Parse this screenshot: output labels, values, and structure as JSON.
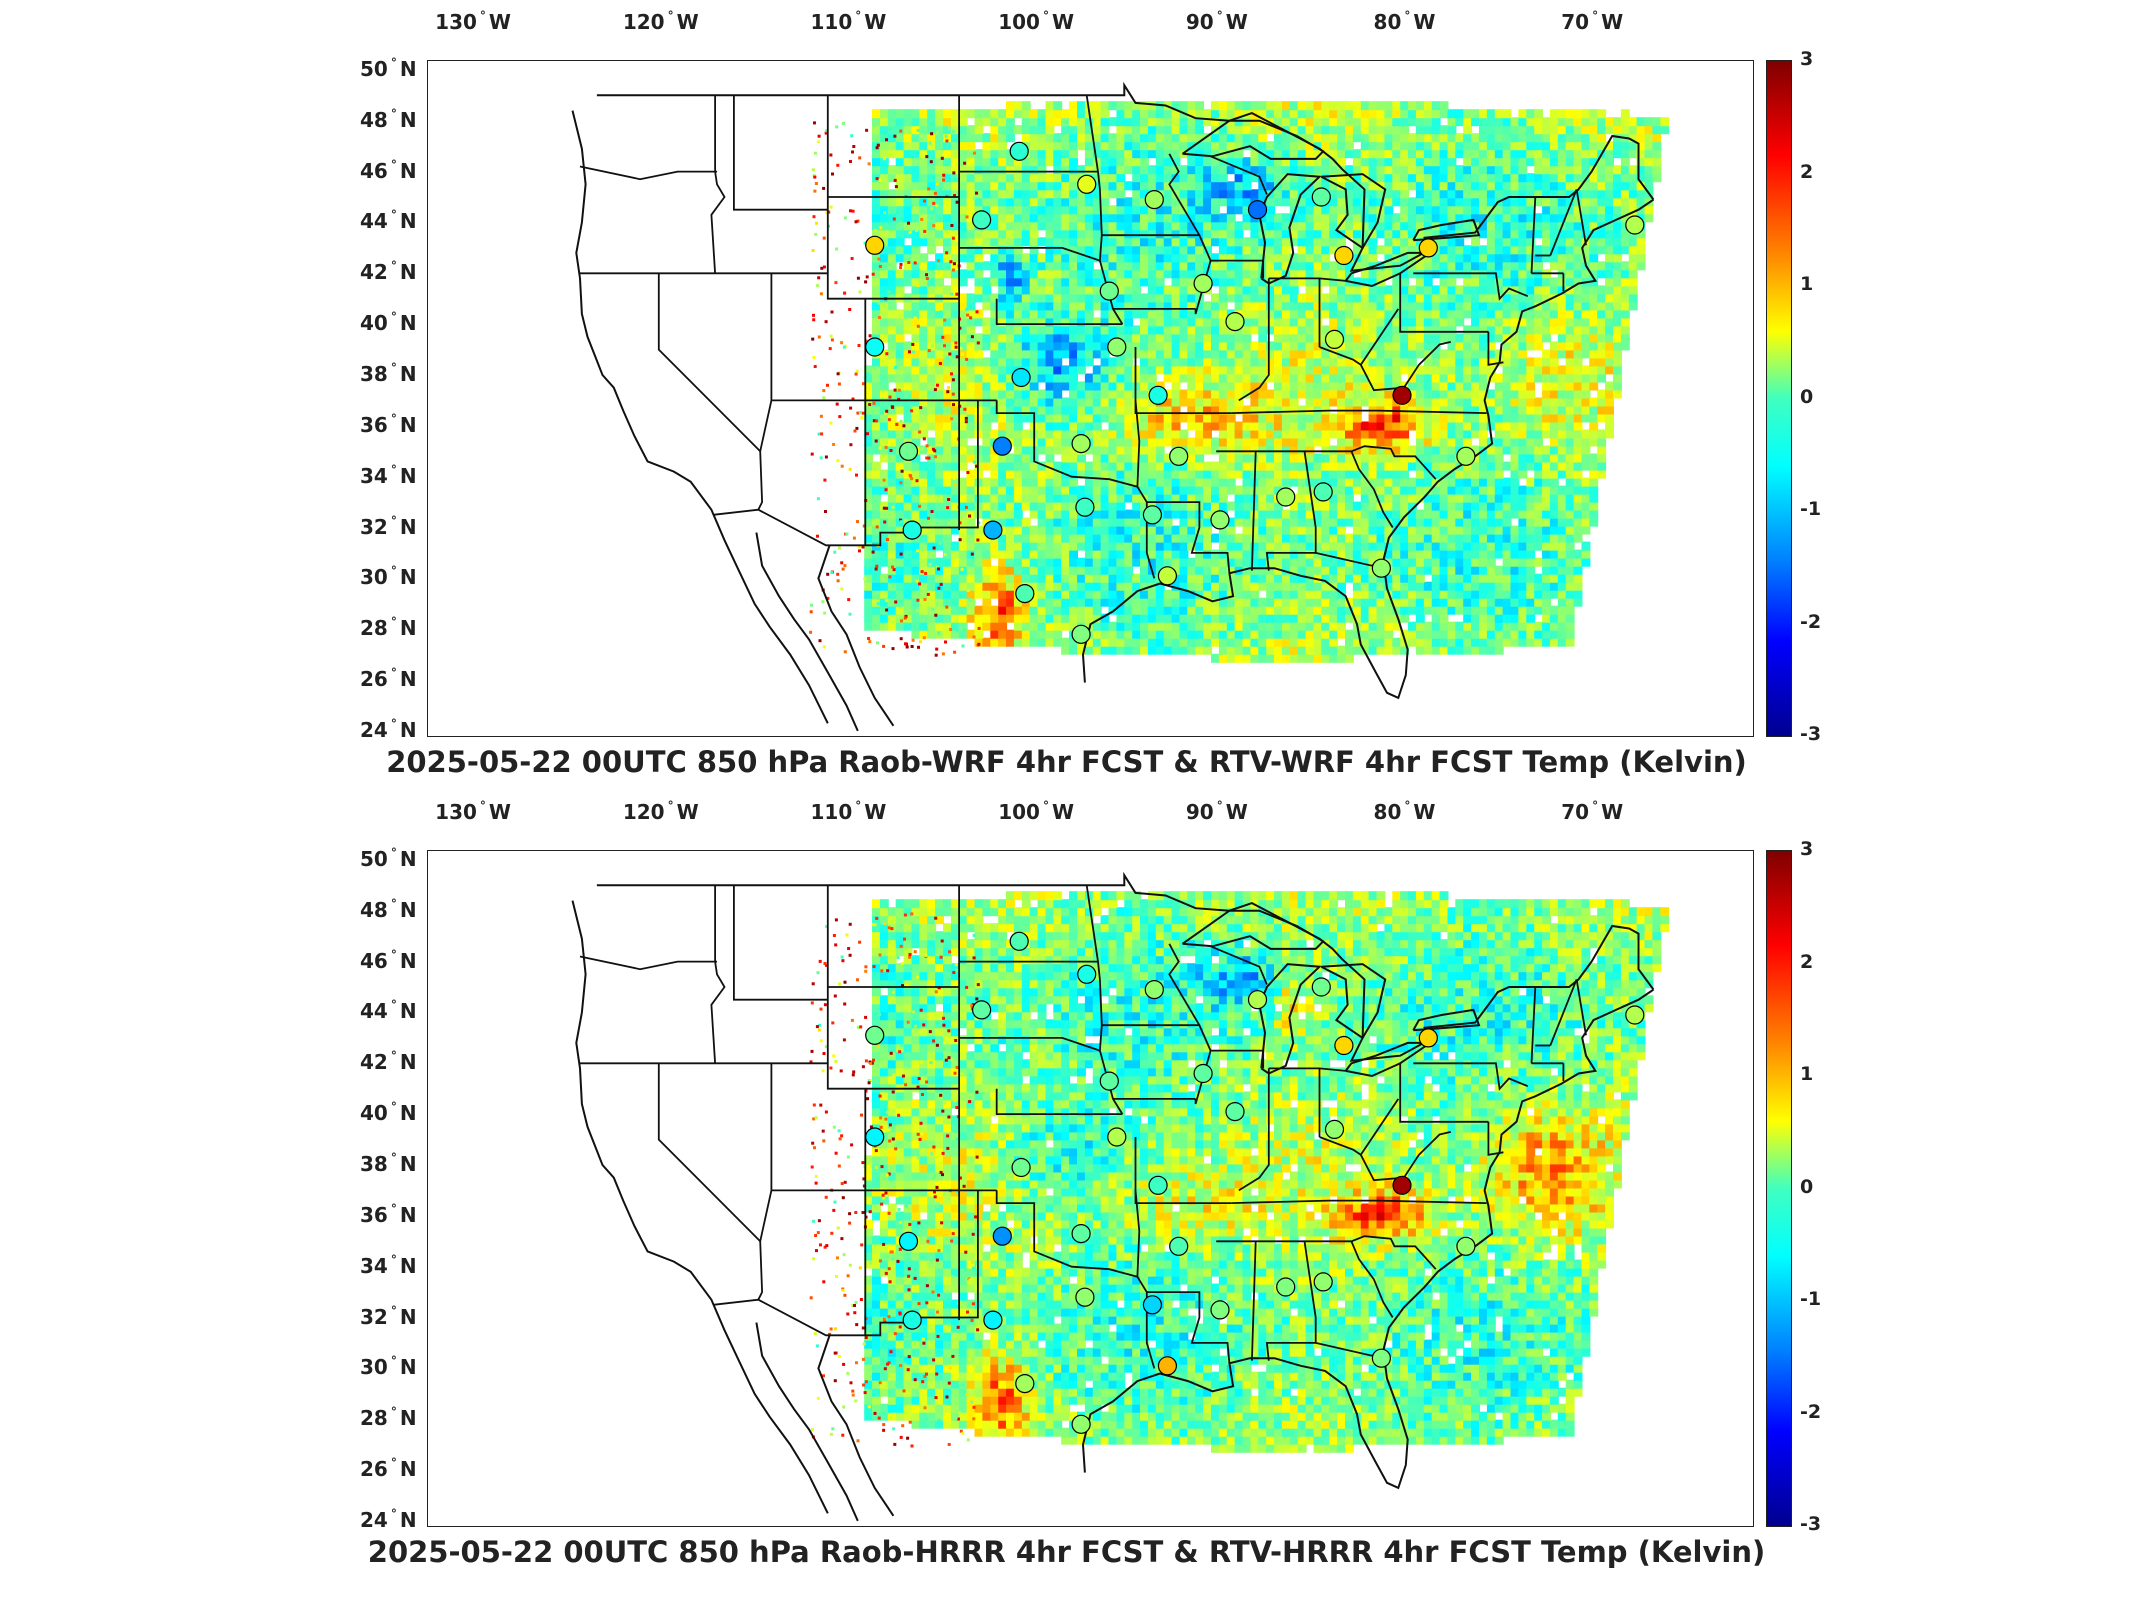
{
  "lon_labels": [
    {
      "deg": "130",
      "dir": "W"
    },
    {
      "deg": "120",
      "dir": "W"
    },
    {
      "deg": "110",
      "dir": "W"
    },
    {
      "deg": "100",
      "dir": "W"
    },
    {
      "deg": "90",
      "dir": "W"
    },
    {
      "deg": "80",
      "dir": "W"
    },
    {
      "deg": "70",
      "dir": "W"
    }
  ],
  "lat_labels": [
    {
      "deg": "50",
      "dir": "N"
    },
    {
      "deg": "48",
      "dir": "N"
    },
    {
      "deg": "46",
      "dir": "N"
    },
    {
      "deg": "44",
      "dir": "N"
    },
    {
      "deg": "42",
      "dir": "N"
    },
    {
      "deg": "40",
      "dir": "N"
    },
    {
      "deg": "38",
      "dir": "N"
    },
    {
      "deg": "36",
      "dir": "N"
    },
    {
      "deg": "34",
      "dir": "N"
    },
    {
      "deg": "32",
      "dir": "N"
    },
    {
      "deg": "30",
      "dir": "N"
    },
    {
      "deg": "28",
      "dir": "N"
    },
    {
      "deg": "26",
      "dir": "N"
    },
    {
      "deg": "24",
      "dir": "N"
    }
  ],
  "colorbar": {
    "ticks": [
      "3",
      "2",
      "1",
      "0",
      "-1",
      "-2",
      "-3"
    ],
    "range": [
      -3,
      3
    ],
    "colormap": "jet"
  },
  "panels": [
    {
      "title": "2025-05-22 00UTC 850 hPa Raob-WRF 4hr FCST & RTV-WRF 4hr FCST Temp (Kelvin)",
      "stations": [
        {
          "lon": -108.5,
          "lat": 43.1,
          "value": 1.0
        },
        {
          "lon": -108.5,
          "lat": 39.1,
          "value": -0.7
        },
        {
          "lon": -106.7,
          "lat": 35.0,
          "value": -0.1
        },
        {
          "lon": -106.5,
          "lat": 31.9,
          "value": -0.6
        },
        {
          "lon": -102.8,
          "lat": 44.1,
          "value": -0.4
        },
        {
          "lon": -100.8,
          "lat": 46.8,
          "value": -0.5
        },
        {
          "lon": -97.2,
          "lat": 45.5,
          "value": 0.6
        },
        {
          "lon": -93.6,
          "lat": 44.9,
          "value": 0.2
        },
        {
          "lon": -88.1,
          "lat": 44.5,
          "value": -1.6
        },
        {
          "lon": -84.7,
          "lat": 45.0,
          "value": -0.2
        },
        {
          "lon": -83.5,
          "lat": 42.7,
          "value": 1.0
        },
        {
          "lon": -79.0,
          "lat": 43.0,
          "value": 1.0
        },
        {
          "lon": -68.0,
          "lat": 43.9,
          "value": 0.3
        },
        {
          "lon": -96.0,
          "lat": 41.3,
          "value": -0.1
        },
        {
          "lon": -91.0,
          "lat": 41.6,
          "value": 0.2
        },
        {
          "lon": -95.6,
          "lat": 39.1,
          "value": 0.1
        },
        {
          "lon": -89.3,
          "lat": 40.1,
          "value": 0.3
        },
        {
          "lon": -84.0,
          "lat": 39.4,
          "value": 0.4
        },
        {
          "lon": -80.4,
          "lat": 37.2,
          "value": 2.8
        },
        {
          "lon": -100.7,
          "lat": 37.9,
          "value": -0.9
        },
        {
          "lon": -93.4,
          "lat": 37.2,
          "value": -0.6
        },
        {
          "lon": -101.7,
          "lat": 35.2,
          "value": -1.5
        },
        {
          "lon": -97.5,
          "lat": 35.3,
          "value": 0.2
        },
        {
          "lon": -92.3,
          "lat": 34.8,
          "value": 0.1
        },
        {
          "lon": -86.6,
          "lat": 33.2,
          "value": 0.2
        },
        {
          "lon": -84.6,
          "lat": 33.4,
          "value": -0.3
        },
        {
          "lon": -97.3,
          "lat": 32.8,
          "value": -0.4
        },
        {
          "lon": -102.2,
          "lat": 31.9,
          "value": -1.2
        },
        {
          "lon": -90.1,
          "lat": 32.3,
          "value": 0.1
        },
        {
          "lon": -93.7,
          "lat": 32.5,
          "value": -0.2
        },
        {
          "lon": -100.5,
          "lat": 29.4,
          "value": -0.3
        },
        {
          "lon": -92.9,
          "lat": 30.1,
          "value": 0.4
        },
        {
          "lon": -81.5,
          "lat": 30.4,
          "value": 0.1
        },
        {
          "lon": -97.5,
          "lat": 27.8,
          "value": 0.0
        },
        {
          "lon": -77.0,
          "lat": 34.8,
          "value": 0.2
        }
      ]
    },
    {
      "title": "2025-05-22 00UTC 850 hPa Raob-HRRR 4hr FCST & RTV-HRRR 4hr FCST Temp (Kelvin)",
      "stations": [
        {
          "lon": -108.5,
          "lat": 43.1,
          "value": -0.1
        },
        {
          "lon": -108.5,
          "lat": 39.1,
          "value": -0.8
        },
        {
          "lon": -106.7,
          "lat": 35.0,
          "value": -0.8
        },
        {
          "lon": -106.5,
          "lat": 31.9,
          "value": -0.6
        },
        {
          "lon": -102.8,
          "lat": 44.1,
          "value": -0.2
        },
        {
          "lon": -100.8,
          "lat": 46.8,
          "value": -0.3
        },
        {
          "lon": -97.2,
          "lat": 45.5,
          "value": -0.6
        },
        {
          "lon": -93.6,
          "lat": 44.9,
          "value": 0.1
        },
        {
          "lon": -88.1,
          "lat": 44.5,
          "value": 0.3
        },
        {
          "lon": -84.7,
          "lat": 45.0,
          "value": -0.1
        },
        {
          "lon": -83.5,
          "lat": 42.7,
          "value": 1.0
        },
        {
          "lon": -79.0,
          "lat": 43.0,
          "value": 1.0
        },
        {
          "lon": -68.0,
          "lat": 43.9,
          "value": 0.3
        },
        {
          "lon": -96.0,
          "lat": 41.3,
          "value": -0.2
        },
        {
          "lon": -91.0,
          "lat": 41.6,
          "value": -0.2
        },
        {
          "lon": -95.6,
          "lat": 39.1,
          "value": 0.3
        },
        {
          "lon": -89.3,
          "lat": 40.1,
          "value": -0.2
        },
        {
          "lon": -84.0,
          "lat": 39.4,
          "value": 0.1
        },
        {
          "lon": -80.4,
          "lat": 37.2,
          "value": 2.8
        },
        {
          "lon": -100.7,
          "lat": 37.9,
          "value": -0.1
        },
        {
          "lon": -93.4,
          "lat": 37.2,
          "value": -0.4
        },
        {
          "lon": -101.7,
          "lat": 35.2,
          "value": -1.4
        },
        {
          "lon": -97.5,
          "lat": 35.3,
          "value": -0.2
        },
        {
          "lon": -92.3,
          "lat": 34.8,
          "value": -0.3
        },
        {
          "lon": -86.6,
          "lat": 33.2,
          "value": 0.0
        },
        {
          "lon": -84.6,
          "lat": 33.4,
          "value": 0.1
        },
        {
          "lon": -97.3,
          "lat": 32.8,
          "value": 0.1
        },
        {
          "lon": -102.2,
          "lat": 31.9,
          "value": -0.8
        },
        {
          "lon": -90.1,
          "lat": 32.3,
          "value": 0.0
        },
        {
          "lon": -93.7,
          "lat": 32.5,
          "value": -1.0
        },
        {
          "lon": -100.5,
          "lat": 29.4,
          "value": 0.2
        },
        {
          "lon": -92.9,
          "lat": 30.1,
          "value": 1.2
        },
        {
          "lon": -81.5,
          "lat": 30.4,
          "value": 0.0
        },
        {
          "lon": -97.5,
          "lat": 27.8,
          "value": 0.1
        },
        {
          "lon": -77.0,
          "lat": 34.8,
          "value": 0.1
        }
      ]
    }
  ]
}
